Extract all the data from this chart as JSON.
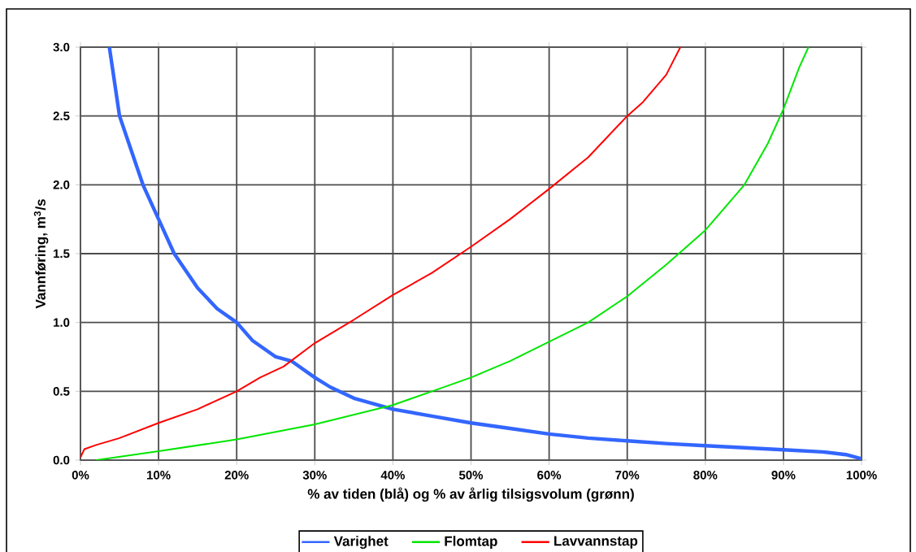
{
  "chart_data": {
    "type": "line",
    "xlabel": "%  av tiden (blå) og %  av årlig tilsigsvolum (grønn)",
    "ylabel": "Vannføring, m$^{3}$/s",
    "xlim": [
      0,
      100
    ],
    "ylim": [
      0,
      3
    ],
    "xticks": [
      {
        "value": 0,
        "label": "0%"
      },
      {
        "value": 10,
        "label": "10%"
      },
      {
        "value": 20,
        "label": "20%"
      },
      {
        "value": 30,
        "label": "30%"
      },
      {
        "value": 40,
        "label": "40%"
      },
      {
        "value": 50,
        "label": "50%"
      },
      {
        "value": 60,
        "label": "60%"
      },
      {
        "value": 70,
        "label": "70%"
      },
      {
        "value": 80,
        "label": "80%"
      },
      {
        "value": 90,
        "label": "90%"
      },
      {
        "value": 100,
        "label": "100%"
      }
    ],
    "yticks": [
      {
        "value": 0,
        "label": "0.0"
      },
      {
        "value": 0.5,
        "label": "0.5"
      },
      {
        "value": 1,
        "label": "1.0"
      },
      {
        "value": 1.5,
        "label": "1.5"
      },
      {
        "value": 2,
        "label": "2.0"
      },
      {
        "value": 2.5,
        "label": "2.5"
      },
      {
        "value": 3,
        "label": "3.0"
      }
    ],
    "grid": true,
    "legend": "bottom",
    "marker": "none",
    "line_style": "solid",
    "series": [
      {
        "name": "Varighet",
        "color": "#3366ff",
        "x": [
          3.7,
          5,
          6.5,
          8,
          10,
          12,
          15,
          17.5,
          20,
          22,
          25,
          27,
          30,
          32,
          35,
          40,
          45,
          50,
          55,
          60,
          65,
          70,
          75,
          80,
          85,
          90,
          95,
          98,
          100
        ],
        "values": [
          3.0,
          2.5,
          2.25,
          2.0,
          1.75,
          1.5,
          1.25,
          1.1,
          1.0,
          0.87,
          0.75,
          0.72,
          0.6,
          0.53,
          0.45,
          0.37,
          0.32,
          0.27,
          0.23,
          0.19,
          0.16,
          0.14,
          0.12,
          0.105,
          0.09,
          0.075,
          0.06,
          0.04,
          0.01
        ]
      },
      {
        "name": "Flomtap",
        "color": "#00e600",
        "x": [
          2,
          10,
          20,
          30,
          40,
          45,
          50,
          55,
          60,
          65,
          70,
          75,
          80,
          85,
          88,
          90,
          92,
          93.2
        ],
        "values": [
          0.0,
          0.065,
          0.15,
          0.26,
          0.4,
          0.5,
          0.6,
          0.72,
          0.86,
          1.0,
          1.19,
          1.42,
          1.67,
          2.0,
          2.3,
          2.55,
          2.85,
          3.0
        ]
      },
      {
        "name": "Lavvannstap",
        "color": "#ff0000",
        "x": [
          0,
          0.5,
          2,
          5,
          10,
          15,
          20,
          23,
          26,
          30,
          35,
          40,
          45,
          50,
          55,
          60,
          65,
          70,
          72,
          75,
          76.8
        ],
        "values": [
          0.02,
          0.08,
          0.11,
          0.16,
          0.27,
          0.37,
          0.5,
          0.6,
          0.68,
          0.85,
          1.02,
          1.2,
          1.36,
          1.55,
          1.75,
          1.97,
          2.2,
          2.5,
          2.6,
          2.8,
          3.0
        ]
      }
    ]
  }
}
